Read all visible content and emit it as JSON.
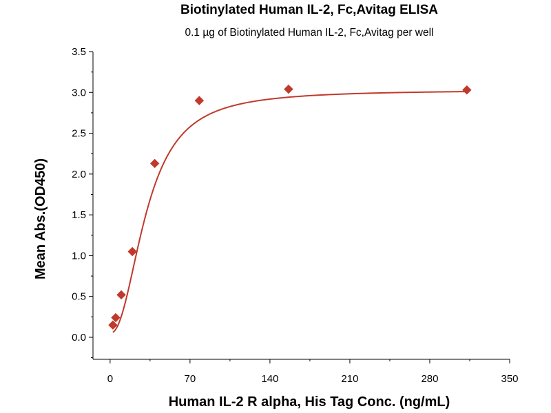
{
  "chart_data": {
    "type": "scatter",
    "title": "Biotinylated Human IL-2, Fc,Avitag ELISA",
    "subtitle": "0.1 µg of Biotinylated Human IL-2, Fc,Avitag per well",
    "xlabel": "Human IL-2 R alpha, His Tag Conc. (ng/mL)",
    "ylabel": "Mean Abs.(OD450)",
    "xlim": [
      -15,
      350
    ],
    "ylim": [
      -0.27,
      3.5
    ],
    "x_ticks": [
      0,
      70,
      140,
      210,
      280,
      350
    ],
    "x_tick_labels": [
      "0",
      "70",
      "140",
      "210",
      "280",
      "350"
    ],
    "y_ticks": [
      0.0,
      0.5,
      1.0,
      1.5,
      2.0,
      2.5,
      3.0,
      3.5
    ],
    "y_tick_labels": [
      "0.0",
      "0.5",
      "1.0",
      "1.5",
      "2.0",
      "2.5",
      "3.0",
      "3.5"
    ],
    "grid": false,
    "legend": "none",
    "color": "#c0392b",
    "series": [
      {
        "marker": "diamond",
        "x": [
          2.44,
          4.88,
          9.77,
          19.5,
          39.1,
          78.1,
          156.3,
          312.5
        ],
        "y": [
          0.15,
          0.24,
          0.52,
          1.05,
          2.13,
          2.9,
          3.04,
          3.03
        ]
      }
    ],
    "fit_curve": {
      "type": "sigmoid",
      "bottom": 0.05,
      "top": 3.03,
      "ec50": 32,
      "hill": 2.2
    }
  }
}
